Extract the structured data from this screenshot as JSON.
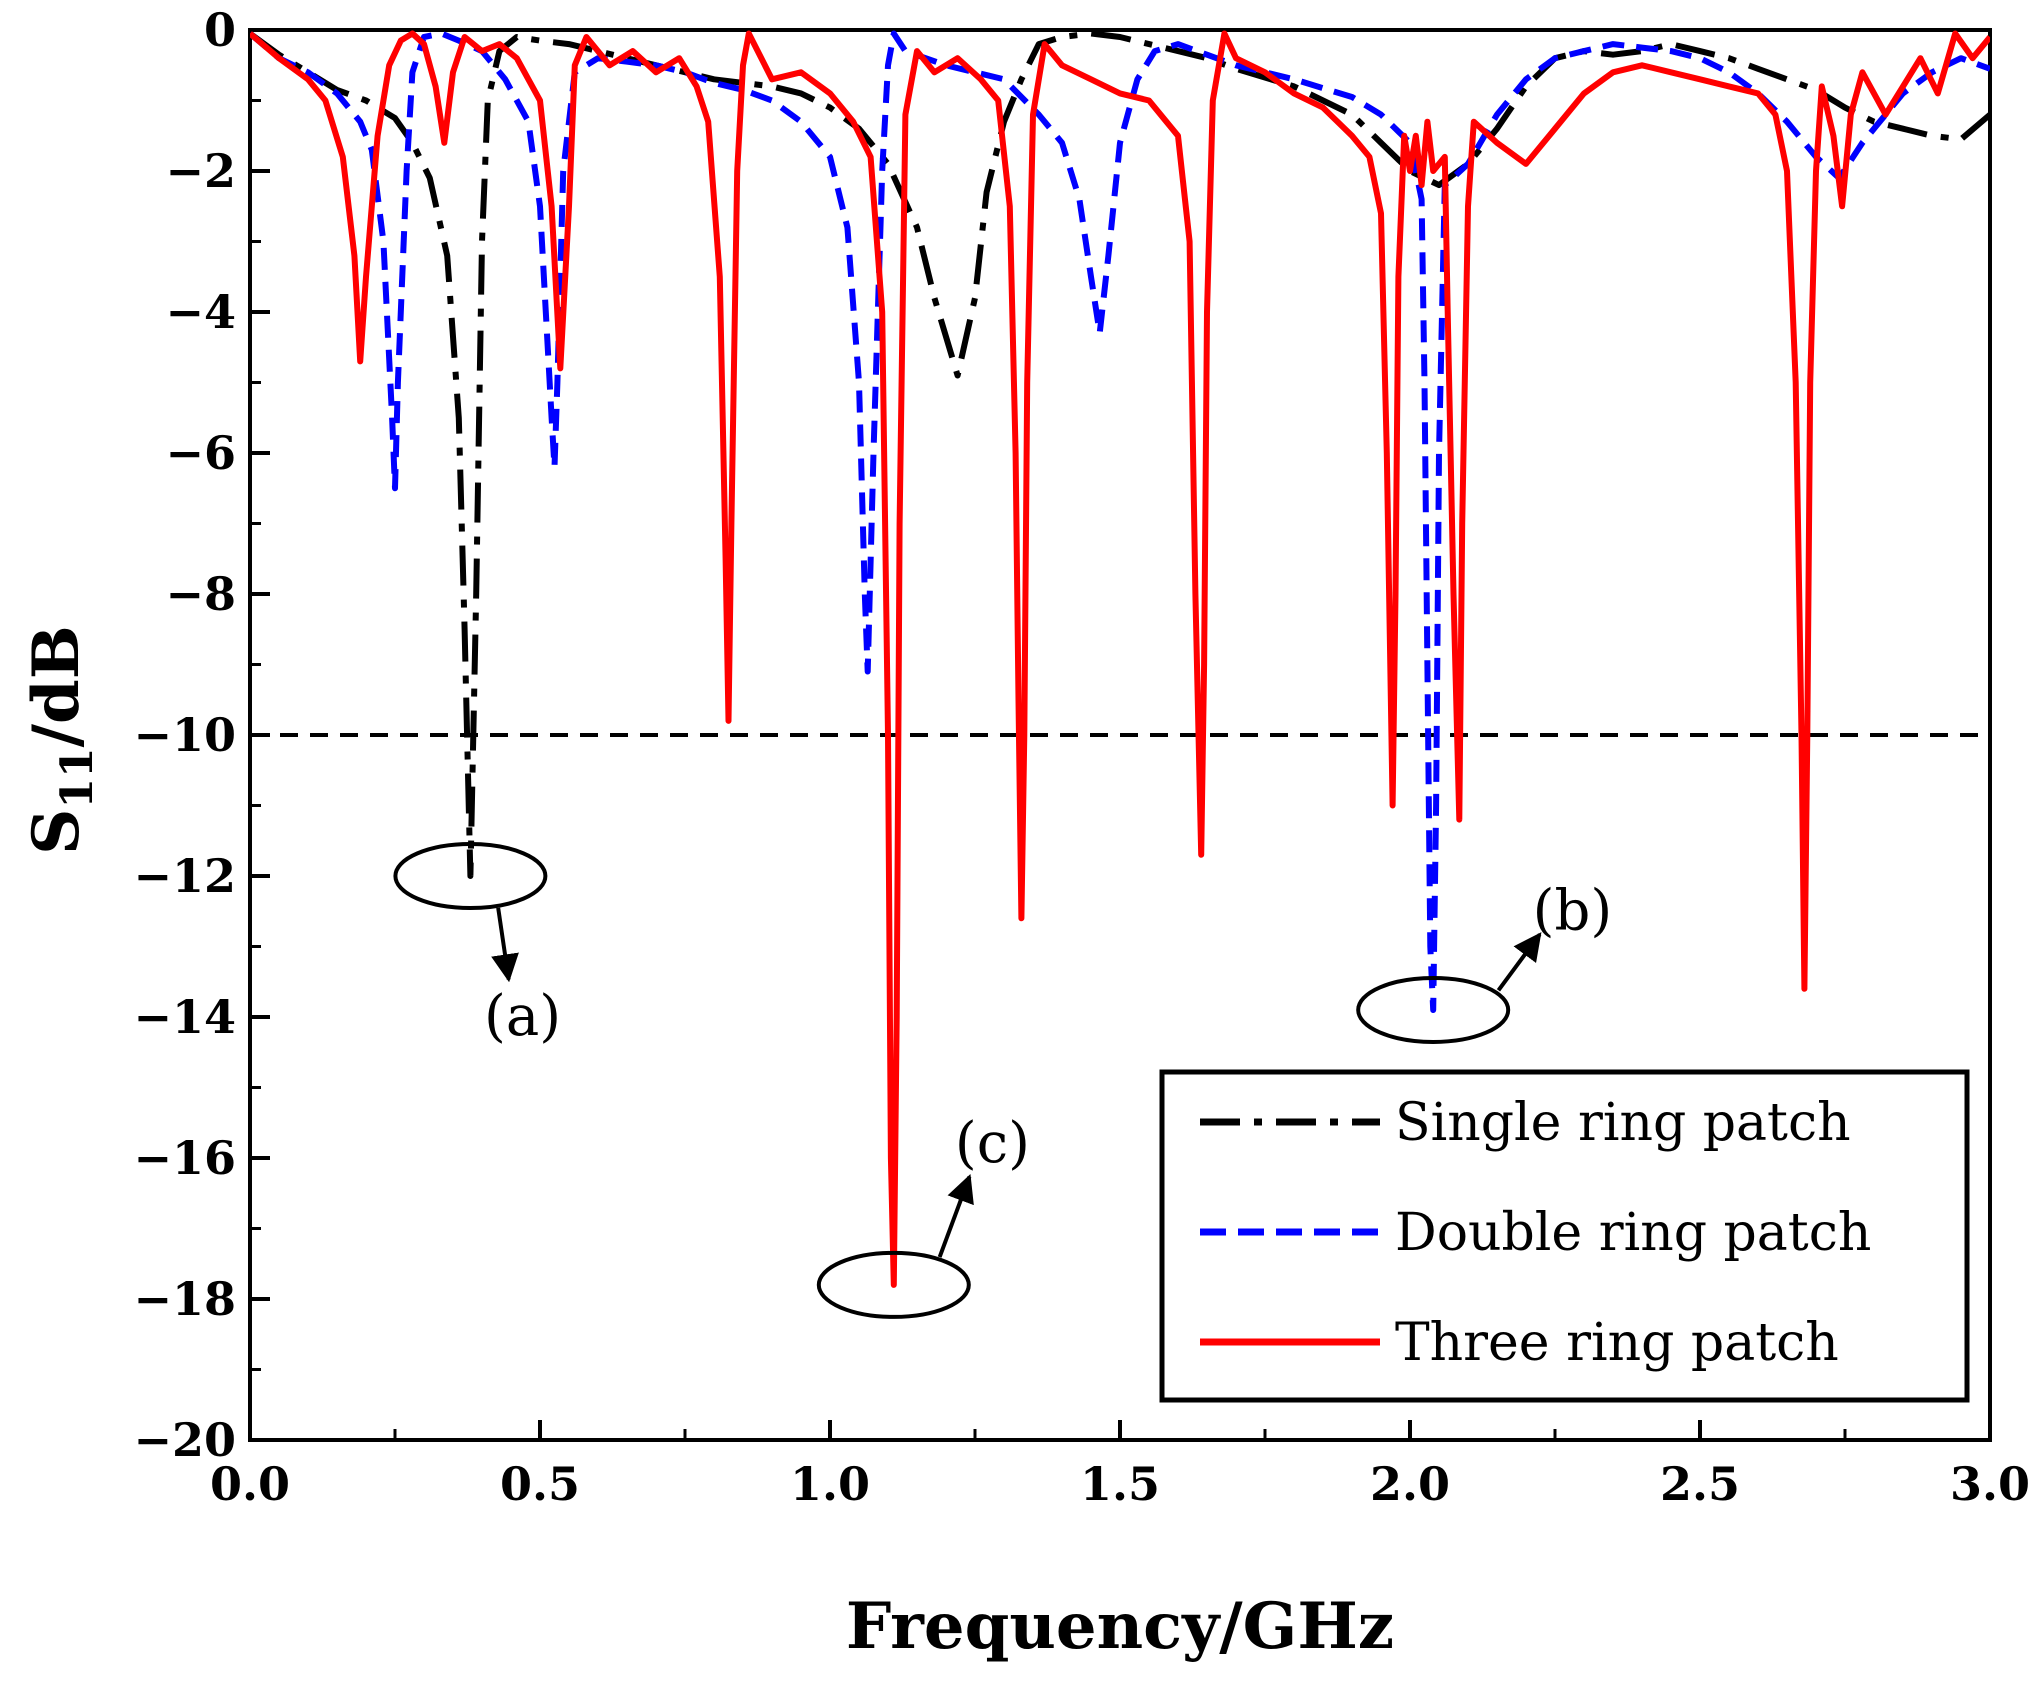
{
  "chart_data": {
    "type": "line",
    "title": "",
    "xlabel": "Frequency/GHz",
    "ylabel_main": "S",
    "ylabel_sub": "11",
    "ylabel_tail": "/dB",
    "xlim": [
      0.0,
      3.0
    ],
    "ylim": [
      -20,
      0
    ],
    "xticks": [
      0.0,
      0.5,
      1.0,
      1.5,
      2.0,
      2.5,
      3.0
    ],
    "xtick_labels": [
      "0.0",
      "0.5",
      "1.0",
      "1.5",
      "2.0",
      "2.5",
      "3.0"
    ],
    "yticks": [
      0,
      -2,
      -4,
      -6,
      -8,
      -10,
      -12,
      -14,
      -16,
      -18,
      -20
    ],
    "ytick_labels": [
      "0",
      "−2",
      "−4",
      "−6",
      "−8",
      "−10",
      "−12",
      "−14",
      "−16",
      "−18",
      "−20"
    ],
    "reference_line": {
      "y": -10,
      "style": "dashed",
      "color": "#000000"
    },
    "series": [
      {
        "name": "Single ring patch",
        "color": "#000000",
        "style": "dashdot",
        "points": [
          [
            0.0,
            -0.05
          ],
          [
            0.05,
            -0.35
          ],
          [
            0.1,
            -0.6
          ],
          [
            0.15,
            -0.85
          ],
          [
            0.2,
            -1.0
          ],
          [
            0.25,
            -1.25
          ],
          [
            0.28,
            -1.6
          ],
          [
            0.31,
            -2.1
          ],
          [
            0.34,
            -3.2
          ],
          [
            0.36,
            -5.5
          ],
          [
            0.37,
            -8.5
          ],
          [
            0.38,
            -12.0
          ],
          [
            0.39,
            -8.0
          ],
          [
            0.4,
            -3.0
          ],
          [
            0.41,
            -1.0
          ],
          [
            0.43,
            -0.3
          ],
          [
            0.46,
            -0.1
          ],
          [
            0.5,
            -0.15
          ],
          [
            0.55,
            -0.2
          ],
          [
            0.6,
            -0.3
          ],
          [
            0.7,
            -0.5
          ],
          [
            0.8,
            -0.7
          ],
          [
            0.9,
            -0.8
          ],
          [
            0.95,
            -0.9
          ],
          [
            1.0,
            -1.1
          ],
          [
            1.05,
            -1.4
          ],
          [
            1.1,
            -1.9
          ],
          [
            1.15,
            -2.8
          ],
          [
            1.18,
            -3.8
          ],
          [
            1.22,
            -4.9
          ],
          [
            1.25,
            -3.8
          ],
          [
            1.27,
            -2.3
          ],
          [
            1.3,
            -1.3
          ],
          [
            1.33,
            -0.7
          ],
          [
            1.36,
            -0.2
          ],
          [
            1.4,
            -0.1
          ],
          [
            1.45,
            -0.05
          ],
          [
            1.5,
            -0.1
          ],
          [
            1.55,
            -0.2
          ],
          [
            1.6,
            -0.3
          ],
          [
            1.65,
            -0.4
          ],
          [
            1.7,
            -0.55
          ],
          [
            1.8,
            -0.8
          ],
          [
            1.9,
            -1.2
          ],
          [
            1.95,
            -1.6
          ],
          [
            2.0,
            -2.0
          ],
          [
            2.05,
            -2.2
          ],
          [
            2.1,
            -1.9
          ],
          [
            2.15,
            -1.4
          ],
          [
            2.2,
            -0.8
          ],
          [
            2.25,
            -0.4
          ],
          [
            2.3,
            -0.3
          ],
          [
            2.35,
            -0.35
          ],
          [
            2.4,
            -0.3
          ],
          [
            2.45,
            -0.2
          ],
          [
            2.5,
            -0.3
          ],
          [
            2.55,
            -0.4
          ],
          [
            2.6,
            -0.55
          ],
          [
            2.65,
            -0.7
          ],
          [
            2.7,
            -0.85
          ],
          [
            2.75,
            -1.1
          ],
          [
            2.8,
            -1.3
          ],
          [
            2.85,
            -1.4
          ],
          [
            2.9,
            -1.5
          ],
          [
            2.95,
            -1.55
          ],
          [
            3.0,
            -1.2
          ]
        ]
      },
      {
        "name": "Double ring patch",
        "color": "#0000ff",
        "style": "dashed",
        "points": [
          [
            0.0,
            -0.05
          ],
          [
            0.05,
            -0.4
          ],
          [
            0.1,
            -0.6
          ],
          [
            0.15,
            -0.9
          ],
          [
            0.19,
            -1.3
          ],
          [
            0.21,
            -1.7
          ],
          [
            0.23,
            -3.0
          ],
          [
            0.245,
            -5.5
          ],
          [
            0.25,
            -6.5
          ],
          [
            0.255,
            -5.0
          ],
          [
            0.27,
            -2.0
          ],
          [
            0.28,
            -0.6
          ],
          [
            0.3,
            -0.1
          ],
          [
            0.33,
            -0.05
          ],
          [
            0.36,
            -0.15
          ],
          [
            0.4,
            -0.3
          ],
          [
            0.44,
            -0.7
          ],
          [
            0.48,
            -1.3
          ],
          [
            0.5,
            -2.5
          ],
          [
            0.51,
            -4.0
          ],
          [
            0.52,
            -5.5
          ],
          [
            0.525,
            -6.2
          ],
          [
            0.53,
            -5.0
          ],
          [
            0.54,
            -2.0
          ],
          [
            0.56,
            -0.6
          ],
          [
            0.6,
            -0.4
          ],
          [
            0.65,
            -0.45
          ],
          [
            0.7,
            -0.5
          ],
          [
            0.75,
            -0.6
          ],
          [
            0.8,
            -0.75
          ],
          [
            0.85,
            -0.85
          ],
          [
            0.9,
            -1.0
          ],
          [
            0.95,
            -1.3
          ],
          [
            1.0,
            -1.8
          ],
          [
            1.03,
            -2.8
          ],
          [
            1.05,
            -5.0
          ],
          [
            1.06,
            -8.0
          ],
          [
            1.065,
            -9.1
          ],
          [
            1.075,
            -6.0
          ],
          [
            1.09,
            -2.0
          ],
          [
            1.1,
            -0.5
          ],
          [
            1.11,
            -0.05
          ],
          [
            1.13,
            -0.3
          ],
          [
            1.2,
            -0.5
          ],
          [
            1.3,
            -0.7
          ],
          [
            1.36,
            -1.2
          ],
          [
            1.4,
            -1.6
          ],
          [
            1.43,
            -2.4
          ],
          [
            1.45,
            -3.5
          ],
          [
            1.465,
            -4.3
          ],
          [
            1.48,
            -3.2
          ],
          [
            1.5,
            -1.6
          ],
          [
            1.53,
            -0.7
          ],
          [
            1.56,
            -0.3
          ],
          [
            1.6,
            -0.2
          ],
          [
            1.65,
            -0.35
          ],
          [
            1.7,
            -0.5
          ],
          [
            1.8,
            -0.7
          ],
          [
            1.9,
            -0.95
          ],
          [
            1.95,
            -1.2
          ],
          [
            2.0,
            -1.6
          ],
          [
            2.02,
            -2.4
          ],
          [
            2.025,
            -5.0
          ],
          [
            2.03,
            -9.0
          ],
          [
            2.035,
            -13.0
          ],
          [
            2.04,
            -13.9
          ],
          [
            2.045,
            -11.0
          ],
          [
            2.05,
            -6.0
          ],
          [
            2.06,
            -2.2
          ],
          [
            2.1,
            -1.9
          ],
          [
            2.15,
            -1.2
          ],
          [
            2.2,
            -0.7
          ],
          [
            2.25,
            -0.4
          ],
          [
            2.3,
            -0.3
          ],
          [
            2.35,
            -0.2
          ],
          [
            2.4,
            -0.25
          ],
          [
            2.45,
            -0.3
          ],
          [
            2.5,
            -0.4
          ],
          [
            2.55,
            -0.6
          ],
          [
            2.6,
            -0.9
          ],
          [
            2.65,
            -1.3
          ],
          [
            2.7,
            -1.8
          ],
          [
            2.74,
            -2.1
          ],
          [
            2.78,
            -1.6
          ],
          [
            2.85,
            -0.9
          ],
          [
            2.9,
            -0.6
          ],
          [
            2.95,
            -0.4
          ],
          [
            3.0,
            -0.55
          ]
        ]
      },
      {
        "name": "Three ring patch",
        "color": "#ff0000",
        "style": "solid",
        "points": [
          [
            0.0,
            -0.05
          ],
          [
            0.05,
            -0.4
          ],
          [
            0.1,
            -0.7
          ],
          [
            0.13,
            -1.0
          ],
          [
            0.16,
            -1.8
          ],
          [
            0.18,
            -3.2
          ],
          [
            0.19,
            -4.7
          ],
          [
            0.2,
            -3.5
          ],
          [
            0.22,
            -1.5
          ],
          [
            0.24,
            -0.5
          ],
          [
            0.26,
            -0.15
          ],
          [
            0.28,
            -0.05
          ],
          [
            0.3,
            -0.2
          ],
          [
            0.32,
            -0.8
          ],
          [
            0.335,
            -1.6
          ],
          [
            0.35,
            -0.6
          ],
          [
            0.37,
            -0.1
          ],
          [
            0.4,
            -0.3
          ],
          [
            0.43,
            -0.2
          ],
          [
            0.46,
            -0.4
          ],
          [
            0.5,
            -1.0
          ],
          [
            0.52,
            -2.5
          ],
          [
            0.535,
            -4.8
          ],
          [
            0.55,
            -2.5
          ],
          [
            0.56,
            -0.5
          ],
          [
            0.58,
            -0.1
          ],
          [
            0.62,
            -0.5
          ],
          [
            0.66,
            -0.3
          ],
          [
            0.7,
            -0.6
          ],
          [
            0.74,
            -0.4
          ],
          [
            0.77,
            -0.8
          ],
          [
            0.79,
            -1.3
          ],
          [
            0.81,
            -3.5
          ],
          [
            0.82,
            -7.5
          ],
          [
            0.825,
            -9.8
          ],
          [
            0.83,
            -7.0
          ],
          [
            0.84,
            -2.0
          ],
          [
            0.85,
            -0.5
          ],
          [
            0.86,
            -0.05
          ],
          [
            0.9,
            -0.7
          ],
          [
            0.95,
            -0.6
          ],
          [
            1.0,
            -0.9
          ],
          [
            1.04,
            -1.3
          ],
          [
            1.07,
            -1.8
          ],
          [
            1.09,
            -4.0
          ],
          [
            1.1,
            -10.0
          ],
          [
            1.105,
            -16.0
          ],
          [
            1.11,
            -17.8
          ],
          [
            1.115,
            -14.0
          ],
          [
            1.12,
            -7.0
          ],
          [
            1.13,
            -1.2
          ],
          [
            1.15,
            -0.3
          ],
          [
            1.18,
            -0.6
          ],
          [
            1.22,
            -0.4
          ],
          [
            1.26,
            -0.7
          ],
          [
            1.29,
            -1.0
          ],
          [
            1.31,
            -2.5
          ],
          [
            1.32,
            -6.0
          ],
          [
            1.325,
            -9.5
          ],
          [
            1.33,
            -12.6
          ],
          [
            1.335,
            -10.0
          ],
          [
            1.34,
            -5.0
          ],
          [
            1.35,
            -1.2
          ],
          [
            1.37,
            -0.2
          ],
          [
            1.4,
            -0.5
          ],
          [
            1.45,
            -0.7
          ],
          [
            1.5,
            -0.9
          ],
          [
            1.55,
            -1.0
          ],
          [
            1.58,
            -1.3
          ],
          [
            1.6,
            -1.5
          ],
          [
            1.62,
            -3.0
          ],
          [
            1.63,
            -8.0
          ],
          [
            1.64,
            -11.7
          ],
          [
            1.645,
            -9.0
          ],
          [
            1.65,
            -4.0
          ],
          [
            1.66,
            -1.0
          ],
          [
            1.68,
            -0.05
          ],
          [
            1.7,
            -0.4
          ],
          [
            1.75,
            -0.6
          ],
          [
            1.8,
            -0.9
          ],
          [
            1.85,
            -1.1
          ],
          [
            1.9,
            -1.5
          ],
          [
            1.93,
            -1.8
          ],
          [
            1.95,
            -2.6
          ],
          [
            1.96,
            -6.0
          ],
          [
            1.97,
            -11.0
          ],
          [
            1.975,
            -8.0
          ],
          [
            1.98,
            -3.5
          ],
          [
            1.99,
            -1.5
          ],
          [
            2.0,
            -2.0
          ],
          [
            2.01,
            -1.5
          ],
          [
            2.02,
            -2.2
          ],
          [
            2.03,
            -1.3
          ],
          [
            2.04,
            -2.0
          ],
          [
            2.06,
            -1.8
          ],
          [
            2.065,
            -4.0
          ],
          [
            2.075,
            -8.0
          ],
          [
            2.085,
            -11.2
          ],
          [
            2.09,
            -7.0
          ],
          [
            2.1,
            -2.5
          ],
          [
            2.11,
            -1.3
          ],
          [
            2.15,
            -1.6
          ],
          [
            2.2,
            -1.9
          ],
          [
            2.25,
            -1.4
          ],
          [
            2.3,
            -0.9
          ],
          [
            2.35,
            -0.6
          ],
          [
            2.4,
            -0.5
          ],
          [
            2.45,
            -0.6
          ],
          [
            2.5,
            -0.7
          ],
          [
            2.55,
            -0.8
          ],
          [
            2.6,
            -0.9
          ],
          [
            2.63,
            -1.2
          ],
          [
            2.65,
            -2.0
          ],
          [
            2.665,
            -5.0
          ],
          [
            2.675,
            -10.0
          ],
          [
            2.68,
            -13.6
          ],
          [
            2.685,
            -10.0
          ],
          [
            2.69,
            -5.0
          ],
          [
            2.7,
            -2.0
          ],
          [
            2.71,
            -0.8
          ],
          [
            2.73,
            -1.5
          ],
          [
            2.745,
            -2.5
          ],
          [
            2.76,
            -1.2
          ],
          [
            2.78,
            -0.6
          ],
          [
            2.82,
            -1.2
          ],
          [
            2.85,
            -0.8
          ],
          [
            2.88,
            -0.4
          ],
          [
            2.91,
            -0.9
          ],
          [
            2.94,
            -0.05
          ],
          [
            2.97,
            -0.4
          ],
          [
            3.0,
            -0.1
          ]
        ]
      }
    ],
    "legend": {
      "position": "bottom-right",
      "entries": [
        "Single ring patch",
        "Double ring patch",
        "Three ring patch"
      ]
    },
    "annotations": [
      {
        "label": "(a)",
        "x": 0.38,
        "y": -12.0,
        "label_x": 0.47,
        "label_y": -14.0
      },
      {
        "label": "(b)",
        "x": 2.04,
        "y": -13.9,
        "label_x": 2.28,
        "label_y": -12.5
      },
      {
        "label": "(c)",
        "x": 1.11,
        "y": -17.8,
        "label_x": 1.28,
        "label_y": -15.8
      }
    ]
  }
}
